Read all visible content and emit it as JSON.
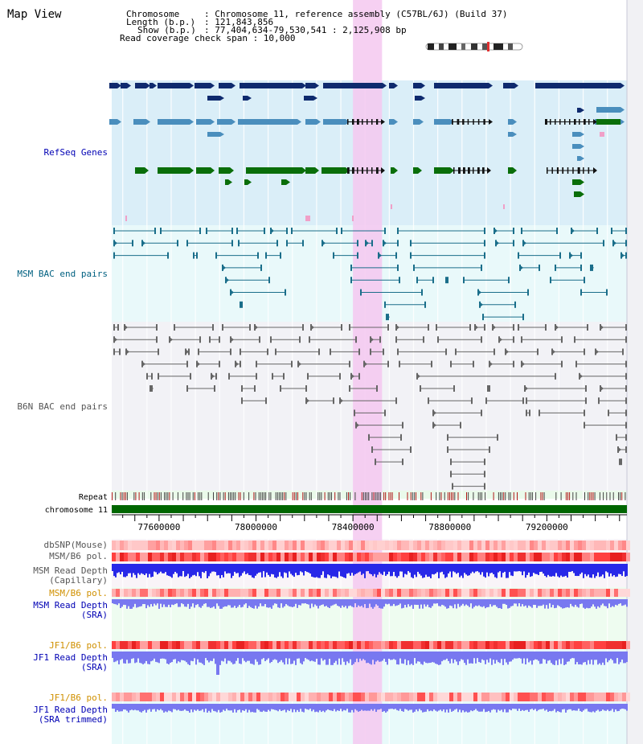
{
  "title": "Map View",
  "header": {
    "chromosome_key": "Chromosome",
    "chromosome_val": ": Chromosome 11, reference assembly (C57BL/6J) (Build 37)",
    "length_key": "Length (b.p.)",
    "length_val": ": 121,843,856",
    "show_key": "Show (b.p.)",
    "show_val": ": 77,404,634-79,530,541 : 2,125,908 bp",
    "coverage": "Read coverage check span : 10,000"
  },
  "tracks": {
    "refseq": "RefSeq Genes",
    "msm_bac": "MSM BAC end pairs",
    "b6n_bac": "B6N BAC end pairs",
    "repeat": "Repeat",
    "chromosome": "chromosome 11",
    "dbsnp": "dbSNP(Mouse)",
    "msm_b6_pol_1": "MSM/B6 pol.",
    "msm_depth_cap_1": "MSM Read Depth",
    "msm_depth_cap_2": "(Capillary)",
    "msm_b6_pol_2": "MSM/B6 pol.",
    "msm_depth_sra_1": "MSM Read Depth",
    "msm_depth_sra_2": "(SRA)",
    "jf1_pol_1": "JF1/B6 pol.",
    "jf1_depth_sra_1": "JF1 Read Depth",
    "jf1_depth_sra_2": "(SRA)",
    "jf1_pol_2": "JF1/B6 pol.",
    "jf1_trim_1": "JF1 Read Depth",
    "jf1_trim_2": "(SRA trimmed)"
  },
  "axis": {
    "start": 77404634,
    "end": 79530541,
    "ticks": [
      "77600000",
      "78000000",
      "78400000",
      "78800000",
      "79200000"
    ]
  },
  "highlight": {
    "start": 78400000,
    "end": 78520000
  },
  "colors": {
    "refseq_dark": "#0f2a6e",
    "refseq_mid": "#4a8ebd",
    "refseq_green": "#0a6e0a",
    "msm_bac": "#1a6e8a",
    "b6n_bac": "#666666",
    "chromosome": "#006600",
    "highlight": "#f5c8f0",
    "depth_blue": "#2828e8",
    "depth_light": "#7878f0"
  }
}
